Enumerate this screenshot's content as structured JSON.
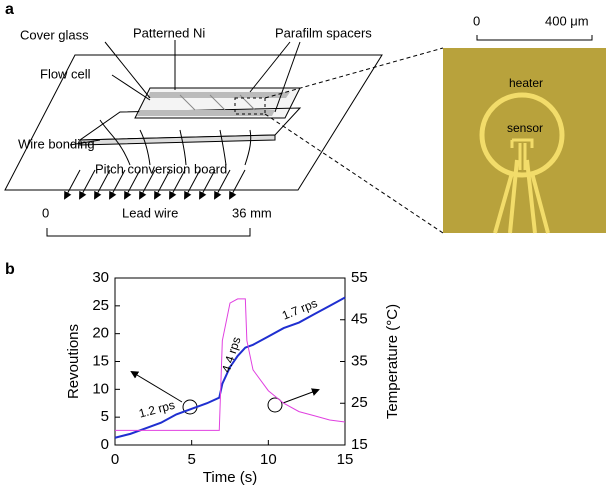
{
  "panel_a": {
    "label": "a",
    "cover_glass": "Cover glass",
    "patterned_ni": "Patterned Ni",
    "parafilm": "Parafilm spacers",
    "flow_cell": "Flow cell",
    "wire_bonding": "Wire bonding",
    "pitch_board": "Pitch conversion board",
    "scale_start": "0",
    "lead_wire": "Lead wire",
    "scale_end": "36 mm",
    "micro_start": "0",
    "micro_end": "400 μm",
    "heater": "heater",
    "sensor": "sensor"
  },
  "chart_data": {
    "type": "line",
    "panel_label": "b",
    "x_label": "Time (s)",
    "y_label": "Revoutions",
    "y2_label": "Temperature (°C)",
    "x": [
      0,
      1,
      2,
      3,
      4,
      5,
      6,
      6.8,
      7,
      7.5,
      8,
      8.5,
      8.6,
      9,
      10,
      11,
      12,
      13,
      14,
      15
    ],
    "series": [
      {
        "color": "#1f2fd0",
        "values": [
          1.3,
          2,
          3,
          4,
          5.5,
          6.5,
          7.5,
          8.5,
          11,
          14,
          16,
          17.5,
          17.6,
          18,
          19.5,
          21,
          22,
          23.5,
          25,
          26.5
        ]
      },
      {
        "color": "#e040e0",
        "axis": "y2",
        "values": [
          18.5,
          18.5,
          18.5,
          18.5,
          18.5,
          18.5,
          18.5,
          18.5,
          40,
          49,
          50,
          50,
          40,
          33,
          28,
          25,
          23,
          22,
          21,
          20.5
        ]
      }
    ],
    "annotations": [
      "1.2 rps",
      "4.4 rps",
      "1.7 rps"
    ],
    "xlim": [
      0,
      15
    ],
    "xticks": [
      0,
      5,
      10,
      15
    ],
    "ylim": [
      0,
      30
    ],
    "yticks": [
      0,
      5,
      10,
      15,
      20,
      25,
      30
    ],
    "y2lim": [
      15,
      55
    ],
    "y2ticks": [
      15,
      25,
      35,
      45,
      55
    ]
  }
}
